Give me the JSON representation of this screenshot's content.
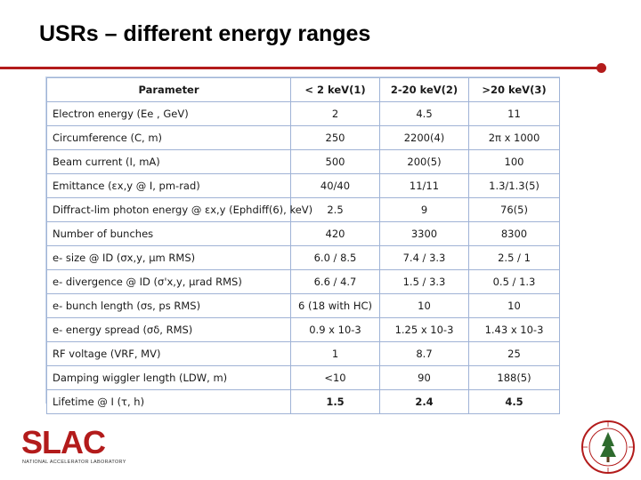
{
  "slide": {
    "title": "USRs – different energy ranges"
  },
  "table": {
    "headers": [
      "Parameter",
      "< 2 keV(1)",
      "2-20 keV(2)",
      ">20 keV(3)"
    ],
    "rows": [
      [
        "Electron energy (Ee , GeV)",
        "2",
        "4.5",
        "11"
      ],
      [
        "Circumference (C, m)",
        "250",
        "2200(4)",
        "2π x 1000"
      ],
      [
        "Beam current (I, mA)",
        "500",
        "200(5)",
        "100"
      ],
      [
        "Emittance (εx,y @ I, pm-rad)",
        "40/40",
        "11/11",
        "1.3/1.3(5)"
      ],
      [
        "Diffract-lim photon energy @ εx,y (Ephdiff(6), keV)",
        "2.5",
        "9",
        "76(5)"
      ],
      [
        "Number of bunches",
        "420",
        "3300",
        "8300"
      ],
      [
        "e- size @ ID (σx,y, μm RMS)",
        "6.0 / 8.5",
        "7.4 / 3.3",
        "2.5 / 1"
      ],
      [
        "e- divergence @ ID (σ'x,y, μrad RMS)",
        "6.6 / 4.7",
        "1.5 / 3.3",
        "0.5 / 1.3"
      ],
      [
        "e- bunch length (σs, ps RMS)",
        "6 (18 with HC)",
        "10",
        "10"
      ],
      [
        "e- energy spread (σδ, RMS)",
        "0.9 x 10-3",
        "1.25 x 10-3",
        "1.43 x 10-3"
      ],
      [
        "RF voltage (VRF, MV)",
        "1",
        "8.7",
        "25"
      ],
      [
        "Damping wiggler length (LDW, m)",
        "<10",
        "90",
        "188(5)"
      ],
      [
        "Lifetime @ I (τ, h)",
        "1.5",
        "2.4",
        "4.5"
      ]
    ]
  },
  "logo": {
    "text": "SLAC",
    "subtitle": "NATIONAL ACCELERATOR LABORATORY"
  },
  "colors": {
    "accent": "#b31b1b",
    "grid": "#9fb3d6"
  }
}
